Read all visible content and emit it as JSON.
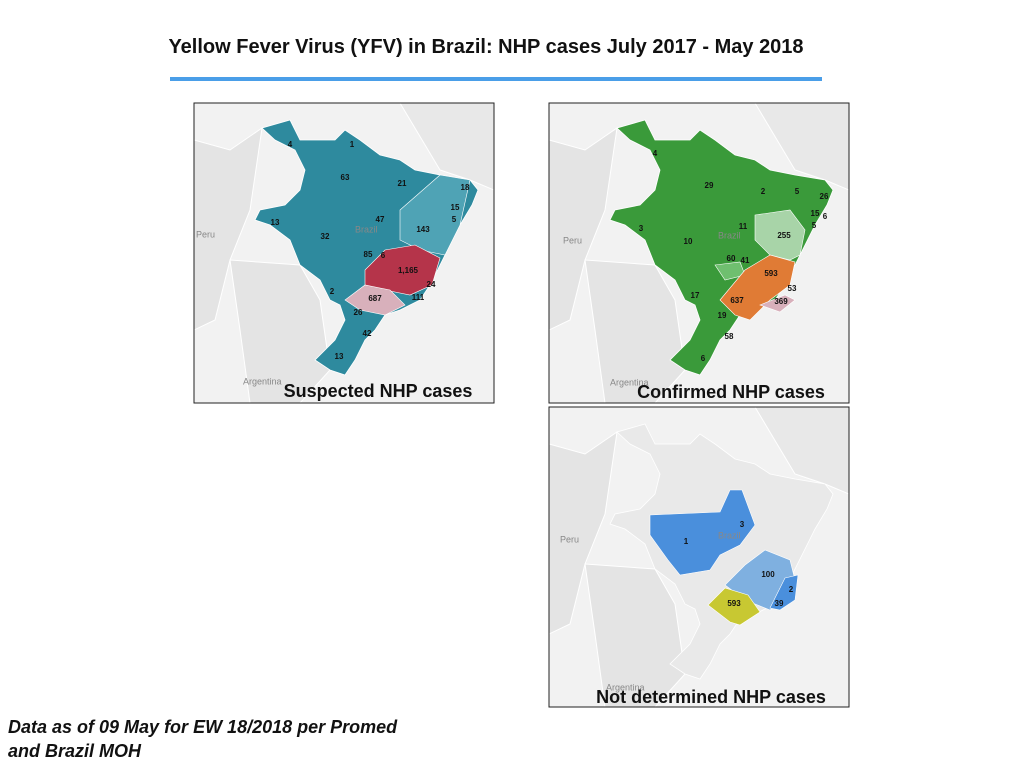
{
  "header": {
    "title": "Yellow Fever Virus (YFV) in Brazil: NHP cases July 2017 - May 2018"
  },
  "maps": [
    {
      "caption": "Suspected NHP cases",
      "places": [
        "Peru",
        "Argentina",
        "Brazil"
      ],
      "labels": [
        "4",
        "1",
        "63",
        "21",
        "18",
        "15",
        "5",
        "13",
        "47",
        "143",
        "32",
        "85",
        "6",
        "1,165",
        "24",
        "2",
        "687",
        "111",
        "26",
        "42",
        "13"
      ]
    },
    {
      "caption": "Confirmed NHP cases",
      "places": [
        "Peru",
        "Argentina",
        "Brazil"
      ],
      "labels": [
        "4",
        "29",
        "2",
        "5",
        "26",
        "15",
        "6",
        "5",
        "3",
        "11",
        "255",
        "10",
        "60",
        "41",
        "593",
        "53",
        "17",
        "637",
        "369",
        "19",
        "58",
        "6"
      ]
    },
    {
      "caption": "Not determined NHP cases",
      "places": [
        "Peru",
        "Argentina",
        "Brazil"
      ],
      "labels": [
        "3",
        "1",
        "100",
        "2",
        "593",
        "39"
      ]
    }
  ],
  "footnote": [
    "Data as of 09 May for EW 18/2018 per Promed",
    "and Brazil MOH"
  ]
}
